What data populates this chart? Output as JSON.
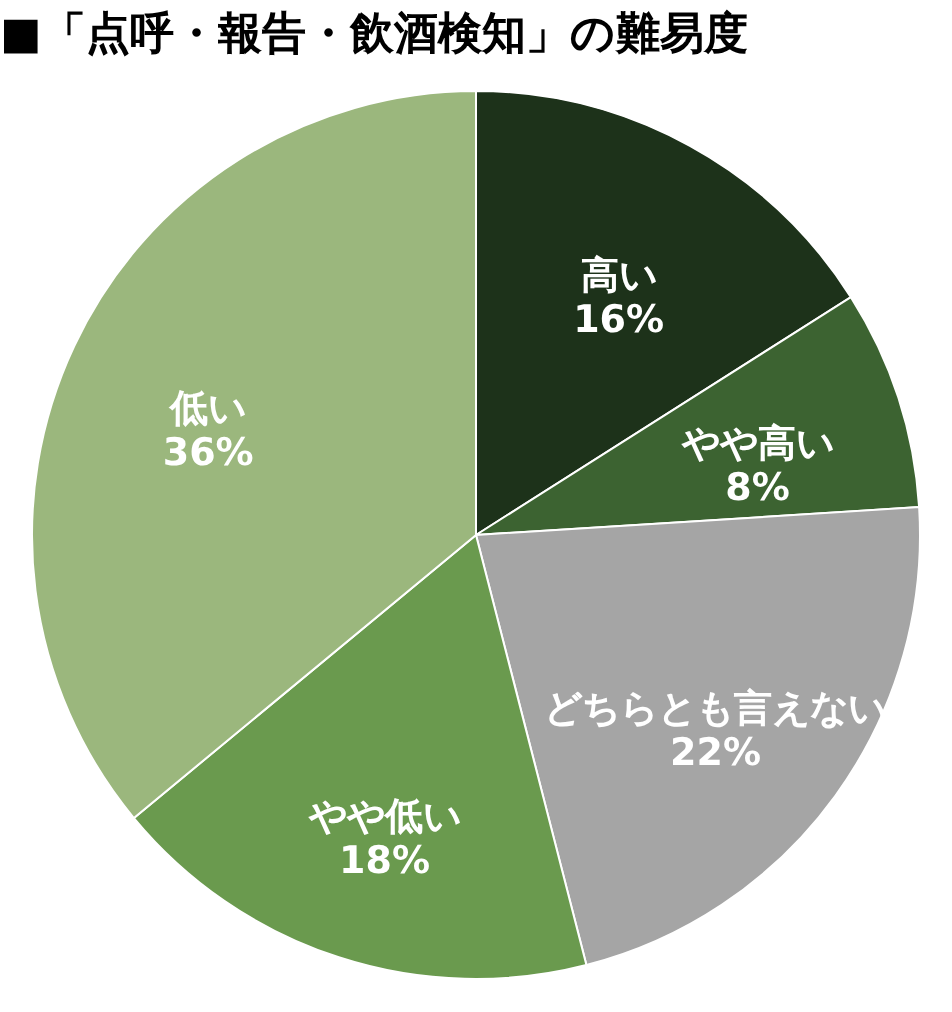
{
  "chart_data": {
    "type": "pie",
    "title": "■「点呼・報告・飲酒検知」の難易度",
    "categories": [
      "高い",
      "やや高い",
      "どちらとも言えない",
      "やや低い",
      "低い"
    ],
    "values": [
      16,
      8,
      22,
      18,
      36
    ],
    "colors": [
      "#1d321a",
      "#3c6331",
      "#a5a5a5",
      "#6a9a4e",
      "#9bb77d"
    ],
    "value_labels": [
      "16%",
      "8%",
      "22%",
      "18%",
      "36%"
    ],
    "legend": false
  }
}
